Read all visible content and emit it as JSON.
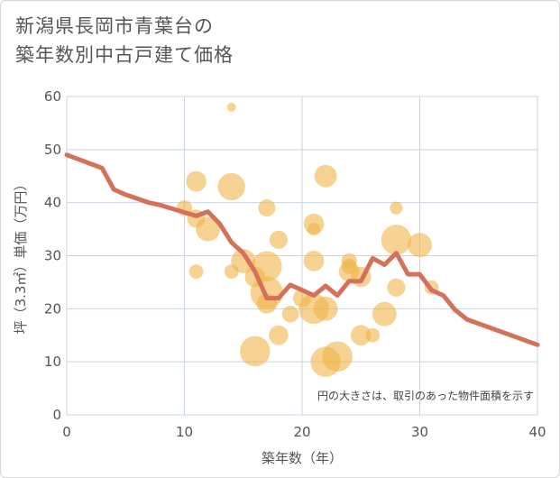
{
  "title_line1": "新潟県長岡市青葉台の",
  "title_line2": "築年数別中古戸建て価格",
  "chart_data": {
    "type": "scatter",
    "title": "新潟県長岡市青葉台の築年数別中古戸建て価格",
    "xlabel": "築年数（年）",
    "ylabel": "坪（3.3㎡）単価（万円）",
    "xlim": [
      0,
      40
    ],
    "ylim": [
      0,
      60
    ],
    "xticks": [
      0,
      10,
      20,
      30,
      40
    ],
    "yticks": [
      0,
      10,
      20,
      30,
      40,
      50,
      60
    ],
    "grid": true,
    "note": "円の大きさは、取引のあった物件面積を示す",
    "bubble_color": "#f0b54a",
    "line_color": "#d4715a",
    "scatter": [
      {
        "x": 10,
        "y": 39,
        "size": 1
      },
      {
        "x": 11,
        "y": 44,
        "size": 2
      },
      {
        "x": 11,
        "y": 37,
        "size": 1.5
      },
      {
        "x": 11,
        "y": 27,
        "size": 0.8
      },
      {
        "x": 12,
        "y": 35,
        "size": 3
      },
      {
        "x": 14,
        "y": 58,
        "size": 0.2
      },
      {
        "x": 14,
        "y": 43,
        "size": 4
      },
      {
        "x": 14,
        "y": 27,
        "size": 0.8
      },
      {
        "x": 15,
        "y": 29,
        "size": 3
      },
      {
        "x": 16,
        "y": 12,
        "size": 5
      },
      {
        "x": 16,
        "y": 26,
        "size": 2
      },
      {
        "x": 17,
        "y": 39,
        "size": 1.3
      },
      {
        "x": 17,
        "y": 28,
        "size": 5
      },
      {
        "x": 17,
        "y": 23,
        "size": 6
      },
      {
        "x": 17,
        "y": 21,
        "size": 2
      },
      {
        "x": 18,
        "y": 33,
        "size": 1.5
      },
      {
        "x": 18,
        "y": 15,
        "size": 1.8
      },
      {
        "x": 19,
        "y": 19,
        "size": 1.2
      },
      {
        "x": 20,
        "y": 22,
        "size": 1.5
      },
      {
        "x": 21,
        "y": 36,
        "size": 2
      },
      {
        "x": 21,
        "y": 35,
        "size": 0.6
      },
      {
        "x": 21,
        "y": 29,
        "size": 2
      },
      {
        "x": 21,
        "y": 20,
        "size": 5
      },
      {
        "x": 22,
        "y": 45,
        "size": 2.5
      },
      {
        "x": 22,
        "y": 20,
        "size": 3
      },
      {
        "x": 22,
        "y": 10,
        "size": 5
      },
      {
        "x": 23,
        "y": 11,
        "size": 5
      },
      {
        "x": 24,
        "y": 29,
        "size": 1
      },
      {
        "x": 24,
        "y": 28,
        "size": 1
      },
      {
        "x": 24,
        "y": 27,
        "size": 2
      },
      {
        "x": 25,
        "y": 26,
        "size": 2
      },
      {
        "x": 25,
        "y": 15,
        "size": 2
      },
      {
        "x": 26,
        "y": 15,
        "size": 0.8
      },
      {
        "x": 27,
        "y": 19,
        "size": 3
      },
      {
        "x": 28,
        "y": 39,
        "size": 0.6
      },
      {
        "x": 28,
        "y": 33,
        "size": 5
      },
      {
        "x": 28,
        "y": 24,
        "size": 1.5
      },
      {
        "x": 30,
        "y": 32,
        "size": 3
      },
      {
        "x": 31,
        "y": 24,
        "size": 0.8
      }
    ],
    "line": {
      "x": [
        0,
        3,
        4,
        5,
        7,
        8,
        11,
        12,
        13,
        14,
        15,
        16,
        17,
        18,
        19,
        20,
        21,
        22,
        23,
        24,
        25,
        26,
        27,
        28,
        29,
        30,
        31,
        32,
        33,
        34,
        40
      ],
      "y": [
        49,
        46.5,
        42.5,
        41.5,
        40,
        39.5,
        37.5,
        38.3,
        36,
        32.5,
        30.5,
        27,
        22,
        22,
        24.5,
        23.5,
        22.5,
        24.3,
        22.5,
        25.2,
        25.2,
        29.5,
        28.3,
        30.5,
        26.5,
        26.5,
        23.5,
        22.5,
        19.8,
        18,
        13.2
      ]
    }
  }
}
